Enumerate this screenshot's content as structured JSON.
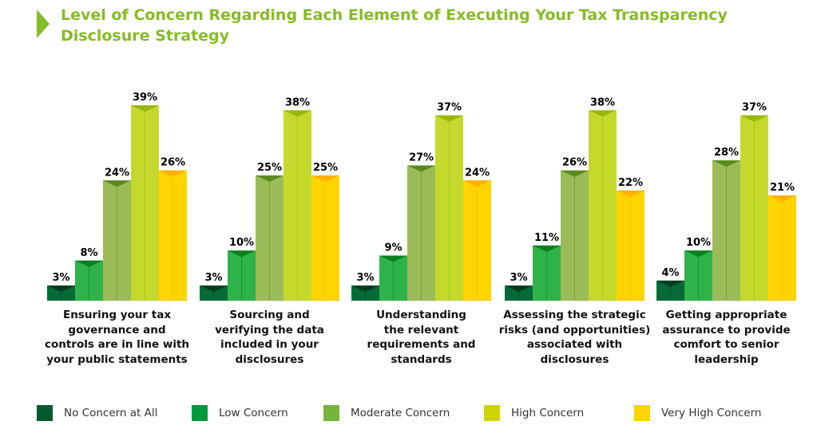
{
  "title": "Level of Concern Regarding Each Element of Executing Your Tax Transparency Disclosure Strategy",
  "chart_data": {
    "type": "bar",
    "title": "Level of Concern Regarding Each Element of Executing Your Tax Transparency Disclosure Strategy",
    "xlabel": "",
    "ylabel": "",
    "ylim": [
      0,
      40
    ],
    "grid": false,
    "legend_position": "bottom",
    "value_suffix": "%",
    "categories": [
      "Ensuring your tax governance and controls are in line with your public statements",
      "Sourcing and verifying the data included in your disclosures",
      "Understanding the relevant requirements and standards",
      "Assessing the strategic risks (and opportunities) associated with disclosures",
      "Getting appropriate assurance to provide comfort to senior leadership"
    ],
    "series": [
      {
        "name": "No Concern at All",
        "color": "#046a38",
        "cap": "#033d1e",
        "legend_color": "#04592d",
        "values": [
          3,
          3,
          3,
          3,
          4
        ]
      },
      {
        "name": "Low Concern",
        "color": "#2db34a",
        "cap": "#0a7f1e",
        "legend_color": "#009a3d",
        "values": [
          8,
          10,
          9,
          11,
          10
        ]
      },
      {
        "name": "Moderate Concern",
        "color": "#9bbb59",
        "cap": "#5a8a1e",
        "legend_color": "#75b53b",
        "values": [
          24,
          25,
          27,
          26,
          28
        ]
      },
      {
        "name": "High Concern",
        "color": "#c5d92d",
        "cap": "#96b80a",
        "legend_color": "#cdd400",
        "values": [
          39,
          38,
          37,
          38,
          37
        ]
      },
      {
        "name": "Very High Concern",
        "color": "#ffd400",
        "cap": "#ffb000",
        "legend_color": "#ffd400",
        "values": [
          26,
          25,
          24,
          22,
          21
        ]
      }
    ],
    "category_lines": [
      [
        "Ensuring your tax",
        "governance and",
        "controls are in line with",
        "your public statements"
      ],
      [
        "Sourcing and",
        "verifying the data",
        "included in your",
        "disclosures"
      ],
      [
        "Understanding",
        "the relevant",
        "requirements and",
        "standards"
      ],
      [
        "Assessing the strategic",
        "risks (and opportunities)",
        "associated with",
        "disclosures"
      ],
      [
        "Getting appropriate",
        "assurance to provide",
        "comfort to senior",
        "leadership"
      ]
    ]
  }
}
